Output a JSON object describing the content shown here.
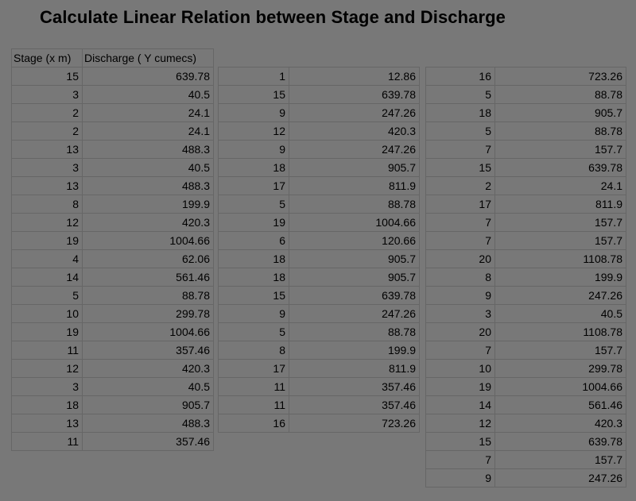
{
  "title": "Calculate Linear Relation between Stage and Discharge",
  "table1": {
    "headers": [
      "Stage (x m)",
      "Discharge ( Y cumecs)"
    ],
    "rows": [
      [
        "15",
        "639.78"
      ],
      [
        "3",
        "40.5"
      ],
      [
        "2",
        "24.1"
      ],
      [
        "2",
        "24.1"
      ],
      [
        "13",
        "488.3"
      ],
      [
        "3",
        "40.5"
      ],
      [
        "13",
        "488.3"
      ],
      [
        "8",
        "199.9"
      ],
      [
        "12",
        "420.3"
      ],
      [
        "19",
        "1004.66"
      ],
      [
        "4",
        "62.06"
      ],
      [
        "14",
        "561.46"
      ],
      [
        "5",
        "88.78"
      ],
      [
        "10",
        "299.78"
      ],
      [
        "19",
        "1004.66"
      ],
      [
        "11",
        "357.46"
      ],
      [
        "12",
        "420.3"
      ],
      [
        "3",
        "40.5"
      ],
      [
        "18",
        "905.7"
      ],
      [
        "13",
        "488.3"
      ],
      [
        "11",
        "357.46"
      ]
    ]
  },
  "table2": {
    "rows": [
      [
        "1",
        "12.86"
      ],
      [
        "15",
        "639.78"
      ],
      [
        "9",
        "247.26"
      ],
      [
        "12",
        "420.3"
      ],
      [
        "9",
        "247.26"
      ],
      [
        "18",
        "905.7"
      ],
      [
        "17",
        "811.9"
      ],
      [
        "5",
        "88.78"
      ],
      [
        "19",
        "1004.66"
      ],
      [
        "6",
        "120.66"
      ],
      [
        "18",
        "905.7"
      ],
      [
        "18",
        "905.7"
      ],
      [
        "15",
        "639.78"
      ],
      [
        "9",
        "247.26"
      ],
      [
        "5",
        "88.78"
      ],
      [
        "8",
        "199.9"
      ],
      [
        "17",
        "811.9"
      ],
      [
        "11",
        "357.46"
      ],
      [
        "11",
        "357.46"
      ],
      [
        "16",
        "723.26"
      ]
    ]
  },
  "table3": {
    "rows": [
      [
        "16",
        "723.26"
      ],
      [
        "5",
        "88.78"
      ],
      [
        "18",
        "905.7"
      ],
      [
        "5",
        "88.78"
      ],
      [
        "7",
        "157.7"
      ],
      [
        "15",
        "639.78"
      ],
      [
        "2",
        "24.1"
      ],
      [
        "17",
        "811.9"
      ],
      [
        "7",
        "157.7"
      ],
      [
        "7",
        "157.7"
      ],
      [
        "20",
        "1108.78"
      ],
      [
        "8",
        "199.9"
      ],
      [
        "9",
        "247.26"
      ],
      [
        "3",
        "40.5"
      ],
      [
        "20",
        "1108.78"
      ],
      [
        "7",
        "157.7"
      ],
      [
        "10",
        "299.78"
      ],
      [
        "19",
        "1004.66"
      ],
      [
        "14",
        "561.46"
      ],
      [
        "12",
        "420.3"
      ],
      [
        "15",
        "639.78"
      ],
      [
        "7",
        "157.7"
      ],
      [
        "9",
        "247.26"
      ]
    ]
  }
}
